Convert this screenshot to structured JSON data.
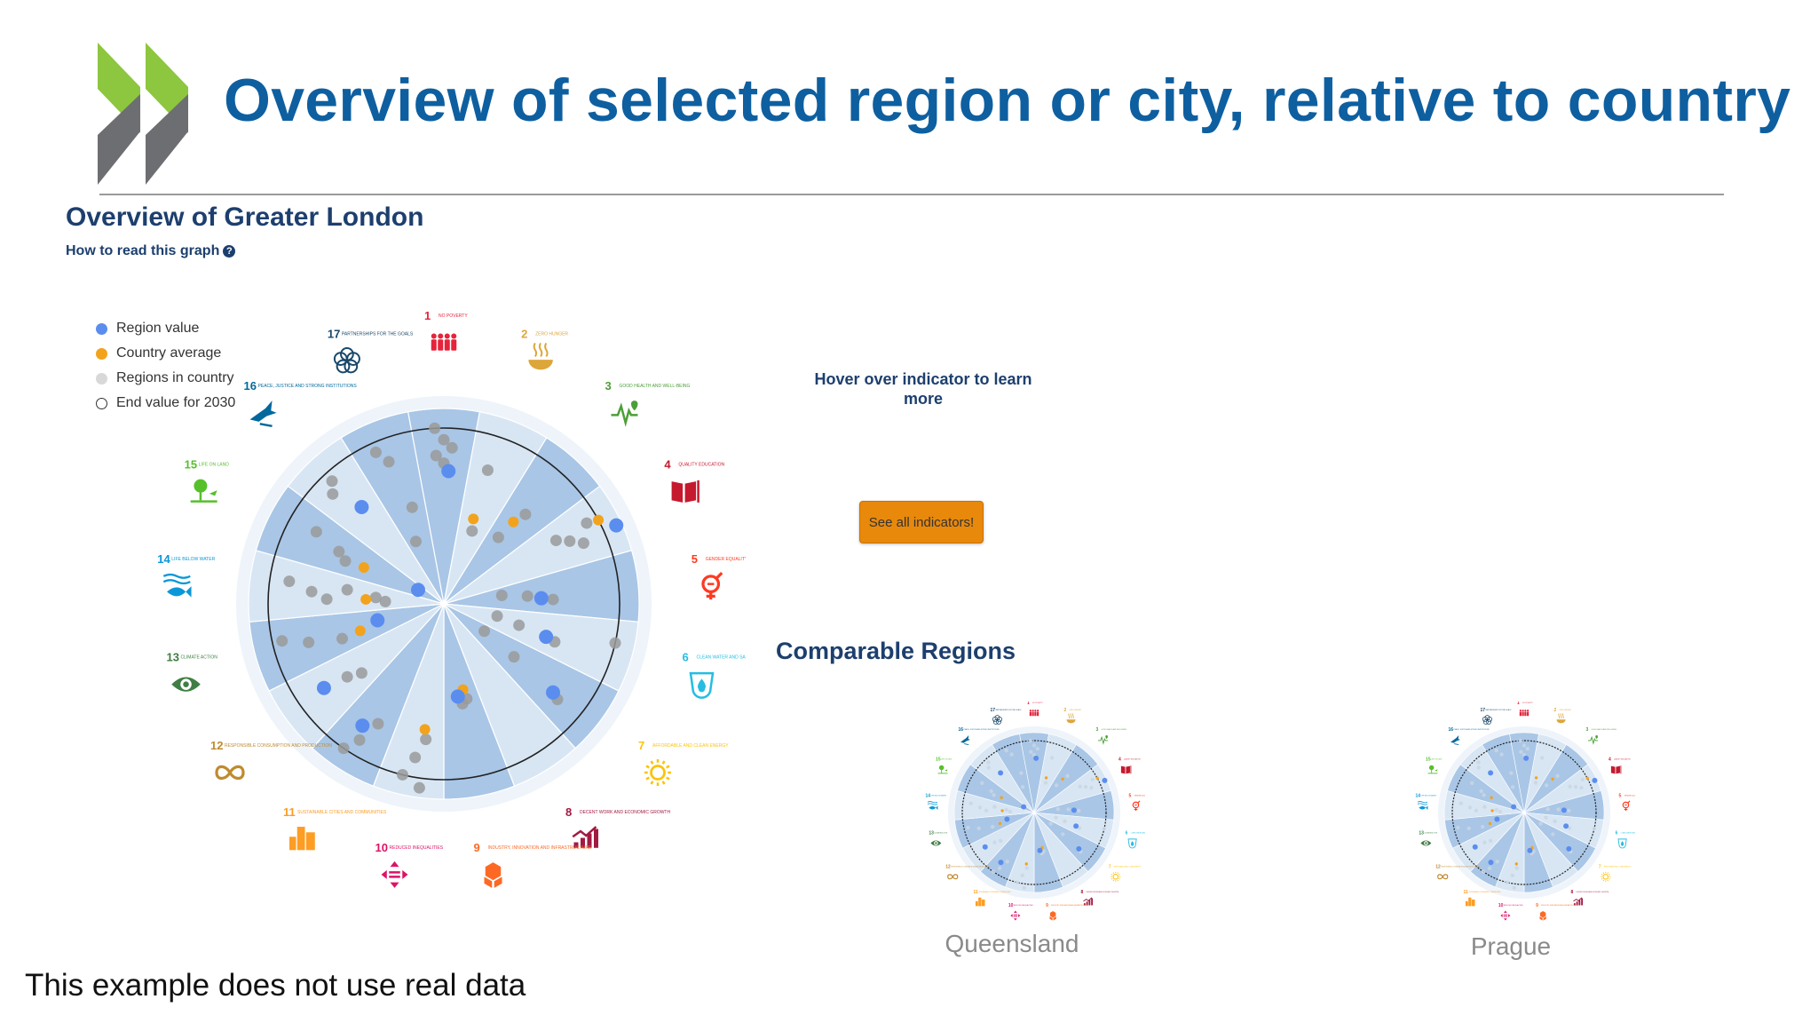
{
  "slide": {
    "title": "Overview of selected region or city, relative to country",
    "disclaimer": "This example does not use real data"
  },
  "colors": {
    "title": "#0e5fa0",
    "heading": "#1d3f6e",
    "region_value": "#5b8def",
    "country_average": "#f2a31b",
    "regions_in_country": "#9a9a9a",
    "logo_green": "#8dc63f",
    "logo_grey": "#6d6e71",
    "button": "#e8890c"
  },
  "overview": {
    "title": "Overview of Greater London",
    "how_to_read": "How to read this graph"
  },
  "legend": [
    {
      "label": "Region value",
      "symbol": "blue-dot-icon"
    },
    {
      "label": "Country average",
      "symbol": "orange-dot-icon"
    },
    {
      "label": "Regions in country",
      "symbol": "grey-dot-icon"
    },
    {
      "label": "End value for 2030",
      "symbol": "hollow-circle-icon"
    }
  ],
  "goals": [
    {
      "num": "1",
      "label": "NO POVERTY",
      "color": "#e5243b",
      "icon": "people-icon"
    },
    {
      "num": "2",
      "label": "ZERO HUNGER",
      "color": "#dda63a",
      "icon": "bowl-icon"
    },
    {
      "num": "3",
      "label": "GOOD HEALTH AND WELL-BEING",
      "color": "#4c9f38",
      "icon": "heartbeat-icon"
    },
    {
      "num": "4",
      "label": "QUALITY EDUCATION",
      "color": "#c5192d",
      "icon": "book-icon"
    },
    {
      "num": "5",
      "label": "GENDER EQUALITY",
      "color": "#ff3a21",
      "icon": "gender-icon"
    },
    {
      "num": "6",
      "label": "CLEAN WATER AND SANITATION",
      "color": "#26bde2",
      "icon": "water-drop-icon"
    },
    {
      "num": "7",
      "label": "AFFORDABLE AND CLEAN ENERGY",
      "color": "#fcc30b",
      "icon": "sun-icon"
    },
    {
      "num": "8",
      "label": "DECENT WORK AND ECONOMIC GROWTH",
      "color": "#a21942",
      "icon": "growth-chart-icon"
    },
    {
      "num": "9",
      "label": "INDUSTRY, INNOVATION AND INFRASTRUCTURE",
      "color": "#fd6925",
      "icon": "cubes-icon"
    },
    {
      "num": "10",
      "label": "REDUCED INEQUALITIES",
      "color": "#dd1367",
      "icon": "arrows-icon"
    },
    {
      "num": "11",
      "label": "SUSTAINABLE CITIES AND COMMUNITIES",
      "color": "#fd9d24",
      "icon": "buildings-icon"
    },
    {
      "num": "12",
      "label": "RESPONSIBLE CONSUMPTION AND PRODUCTION",
      "color": "#bf8b2e",
      "icon": "infinity-icon"
    },
    {
      "num": "13",
      "label": "CLIMATE ACTION",
      "color": "#3f7e44",
      "icon": "eye-globe-icon"
    },
    {
      "num": "14",
      "label": "LIFE BELOW WATER",
      "color": "#0a97d9",
      "icon": "fish-icon"
    },
    {
      "num": "15",
      "label": "LIFE ON LAND",
      "color": "#56c02b",
      "icon": "tree-icon"
    },
    {
      "num": "16",
      "label": "PEACE, JUSTICE AND STRONG INSTITUTIONS",
      "color": "#00689d",
      "icon": "dove-icon"
    },
    {
      "num": "17",
      "label": "PARTNERSHIPS FOR THE GOALS",
      "color": "#19486a",
      "icon": "rings-icon"
    }
  ],
  "chart_data": {
    "type": "scatter",
    "indicators_per_goal": [
      {
        "goal": "1",
        "region": [
          0.68
        ],
        "country": [],
        "regions": [
          0.9,
          0.84,
          0.8,
          0.76,
          0.72
        ]
      },
      {
        "goal": "2",
        "region": [],
        "country": [
          0.46
        ],
        "regions": [
          0.72,
          0.4
        ]
      },
      {
        "goal": "3",
        "region": [],
        "country": [
          0.55
        ],
        "regions": [
          0.44,
          0.62
        ]
      },
      {
        "goal": "4",
        "region": [
          0.97
        ],
        "country": [
          0.9
        ],
        "regions": [
          0.66,
          0.72,
          0.78,
          0.84
        ]
      },
      {
        "goal": "5",
        "region": [
          0.5
        ],
        "country": [],
        "regions": [
          0.3,
          0.43,
          0.56
        ]
      },
      {
        "goal": "6",
        "region": [
          0.55
        ],
        "country": [],
        "regions": [
          0.28,
          0.4,
          0.6,
          0.9
        ]
      },
      {
        "goal": "7",
        "region": [
          0.72
        ],
        "country": [],
        "regions": [
          0.25,
          0.45,
          0.76
        ]
      },
      {
        "goal": "8",
        "region": [],
        "country": [],
        "regions": []
      },
      {
        "goal": "9",
        "region": [
          0.48
        ],
        "country": [
          0.45
        ],
        "regions": [
          0.5,
          0.52
        ]
      },
      {
        "goal": "10",
        "region": [],
        "country": [
          0.65
        ],
        "regions": [
          0.7,
          0.8,
          0.9,
          0.95
        ]
      },
      {
        "goal": "11",
        "region": [
          0.75
        ],
        "country": [],
        "regions": [
          0.7,
          0.82,
          0.9
        ]
      },
      {
        "goal": "12",
        "region": [
          0.75
        ],
        "country": [],
        "regions": [
          0.55,
          0.62
        ]
      },
      {
        "goal": "13",
        "region": [
          0.35
        ],
        "country": [
          0.45
        ],
        "regions": [
          0.55,
          0.72,
          0.85
        ]
      },
      {
        "goal": "14",
        "region": [],
        "country": [
          0.4
        ],
        "regions": [
          0.3,
          0.35,
          0.5,
          0.6,
          0.68,
          0.8
        ]
      },
      {
        "goal": "15",
        "region": [
          0.15
        ],
        "country": [
          0.45
        ],
        "regions": [
          0.55,
          0.6,
          0.75
        ]
      },
      {
        "goal": "16",
        "region": [
          0.65
        ],
        "country": [],
        "regions": [
          0.8,
          0.85
        ]
      },
      {
        "goal": "17",
        "region": [],
        "country": [],
        "regions": [
          0.85,
          0.78,
          0.52,
          0.35
        ]
      }
    ],
    "end_value_2030": 0.9
  },
  "sidebar": {
    "hover_hint": "Hover over indicator to learn more",
    "see_all": "See all indicators!"
  },
  "comparable": {
    "title": "Comparable Regions",
    "regions": [
      {
        "name": "Queensland"
      },
      {
        "name": "Prague"
      }
    ]
  }
}
